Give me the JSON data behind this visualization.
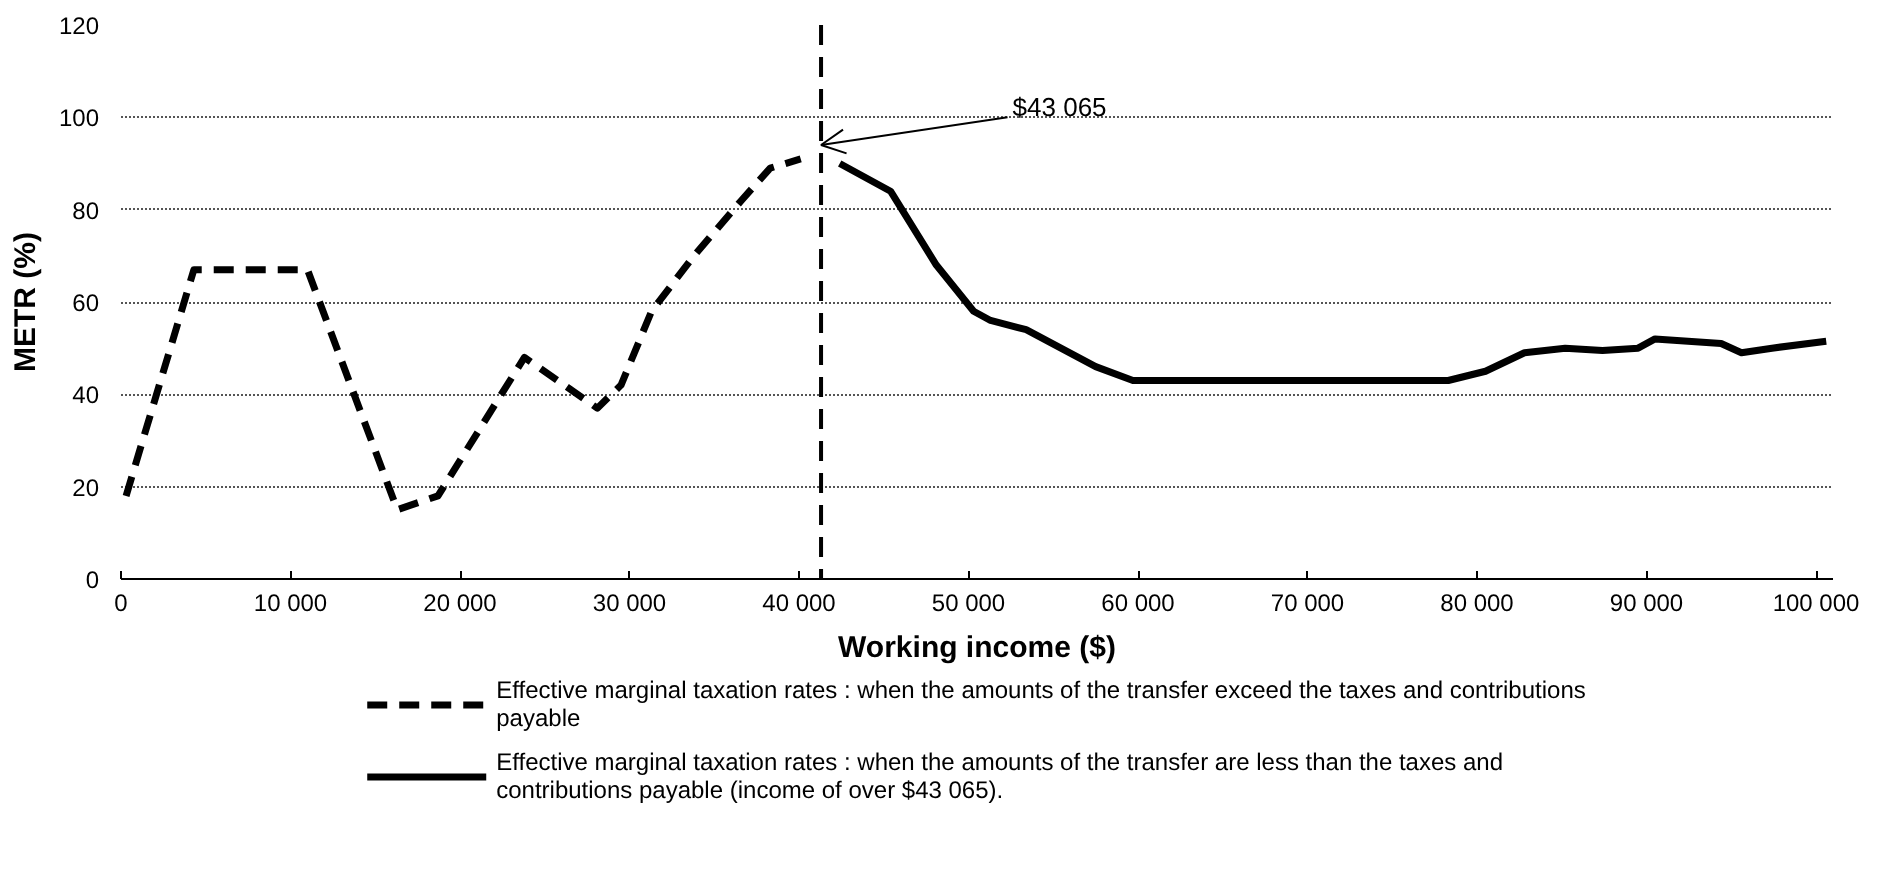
{
  "chart_data": {
    "type": "line",
    "xlabel": "Working income ($)",
    "ylabel": "METR (%)",
    "xlim": [
      0,
      101000
    ],
    "ylim": [
      0,
      120
    ],
    "xticks": [
      0,
      {
        "value": 10000,
        "label": "10 000"
      },
      {
        "value": 20000,
        "label": "20 000"
      },
      {
        "value": 30000,
        "label": "30 000"
      },
      {
        "value": 40000,
        "label": "40 000"
      },
      {
        "value": 50000,
        "label": "50 000"
      },
      {
        "value": 60000,
        "label": "60 000"
      },
      {
        "value": 70000,
        "label": "70 000"
      },
      {
        "value": 80000,
        "label": "80 000"
      },
      {
        "value": 90000,
        "label": "90 000"
      },
      {
        "value": 100000,
        "label": "100 000"
      }
    ],
    "yticks": [
      0,
      20,
      40,
      60,
      80,
      100,
      120
    ],
    "grid": "y",
    "legend": "bottom",
    "series": [
      {
        "name": "Effective marginal taxation rates : when the amounts of the transfer exceed the taxes and contributions payable",
        "color": "#000000",
        "line_style": "dashed",
        "x": [
          300,
          4300,
          11000,
          16300,
          18700,
          23800,
          28100,
          29500,
          31300,
          33800,
          36600,
          38300,
          40100
        ],
        "values": [
          18,
          67,
          67,
          15,
          18,
          48,
          37,
          42,
          58,
          70,
          82,
          89,
          91
        ]
      },
      {
        "name": "Effective marginal taxation rates : when the amounts of the transfer are less than the taxes and contributions payable (income of over $43 065).",
        "color": "#000000",
        "line_style": "solid",
        "x": [
          42400,
          45400,
          48100,
          50300,
          51300,
          53400,
          57500,
          59700,
          78300,
          80500,
          82800,
          85200,
          87400,
          89500,
          90500,
          94400,
          95600,
          97400,
          100600
        ],
        "values": [
          90,
          84,
          68,
          58,
          56,
          54,
          46,
          43,
          43,
          45,
          49,
          50,
          49.5,
          50,
          52,
          51,
          49,
          50,
          51.5
        ]
      }
    ],
    "ref_lines": [
      {
        "axis": "x",
        "value": 41300,
        "line_style": "dashed",
        "color": "#000000"
      }
    ],
    "annotations": [
      {
        "text": "$43 065",
        "x": 41300,
        "y": 94
      }
    ]
  }
}
